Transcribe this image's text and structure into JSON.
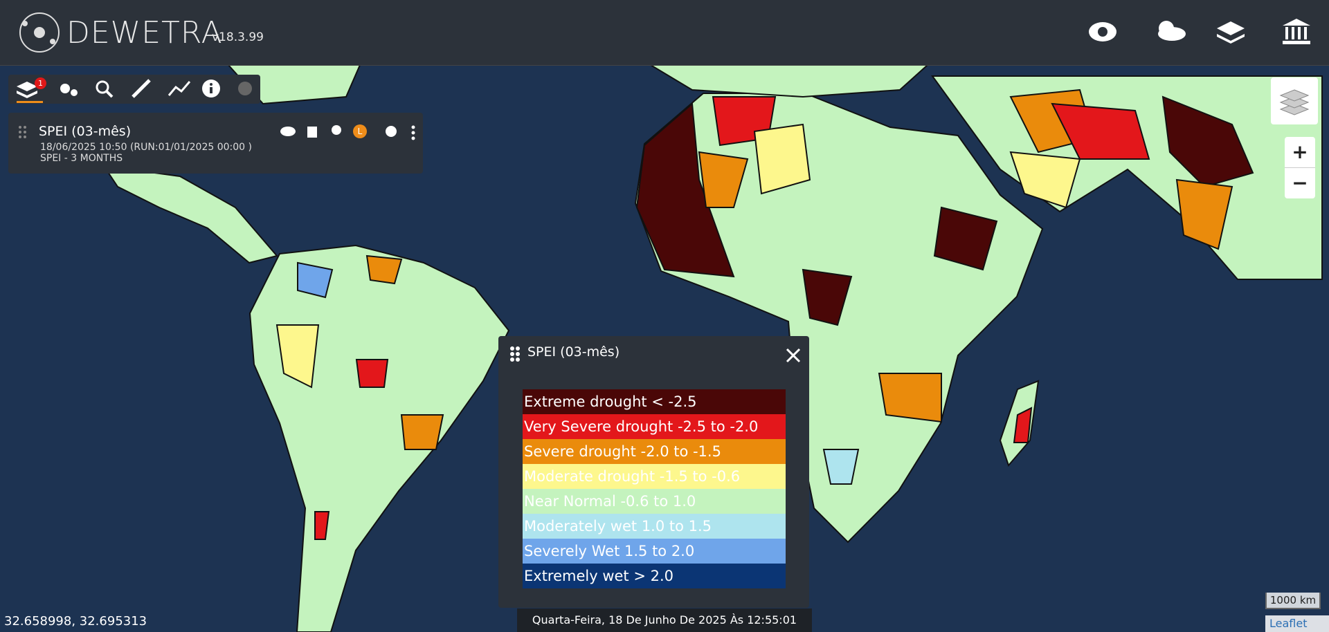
{
  "header": {
    "logo": "DEWETRA",
    "version": "v18.3.99"
  },
  "toolbar": {
    "layers_badge": "1"
  },
  "layer_panel": {
    "title": "SPEI (03-mês)",
    "date": "18/06/2025 10:50 (RUN:01/01/2025 00:00 )",
    "subtitle": "SPEI - 3 MONTHS",
    "badge": "L"
  },
  "legend": {
    "title": "SPEI (03-mês)",
    "items": [
      {
        "label": "Extreme drought < -2.5",
        "color": "#4a0707"
      },
      {
        "label": "Very Severe drought -2.5 to -2.0",
        "color": "#e3171b"
      },
      {
        "label": "Severe drought -2.0 to -1.5",
        "color": "#ea8b0c"
      },
      {
        "label": "Moderate drought -1.5 to -0.6",
        "color": "#fdf78d"
      },
      {
        "label": "Near Normal -0.6 to 1.0",
        "color": "#c4f3be"
      },
      {
        "label": "Moderately wet 1.0 to 1.5",
        "color": "#aee4ee"
      },
      {
        "label": "Severely Wet 1.5 to 2.0",
        "color": "#6fa5ea"
      },
      {
        "label": "Extremely wet > 2.0",
        "color": "#0b3574"
      }
    ]
  },
  "zoom": {
    "in": "+",
    "out": "−"
  },
  "footer": {
    "coordinates": "32.658998, 32.695313",
    "datetime": "Quarta-Feira, 18 De Junho De 2025 Às 12:55:01",
    "scale": "1000 km",
    "attribution": "Leaflet"
  }
}
